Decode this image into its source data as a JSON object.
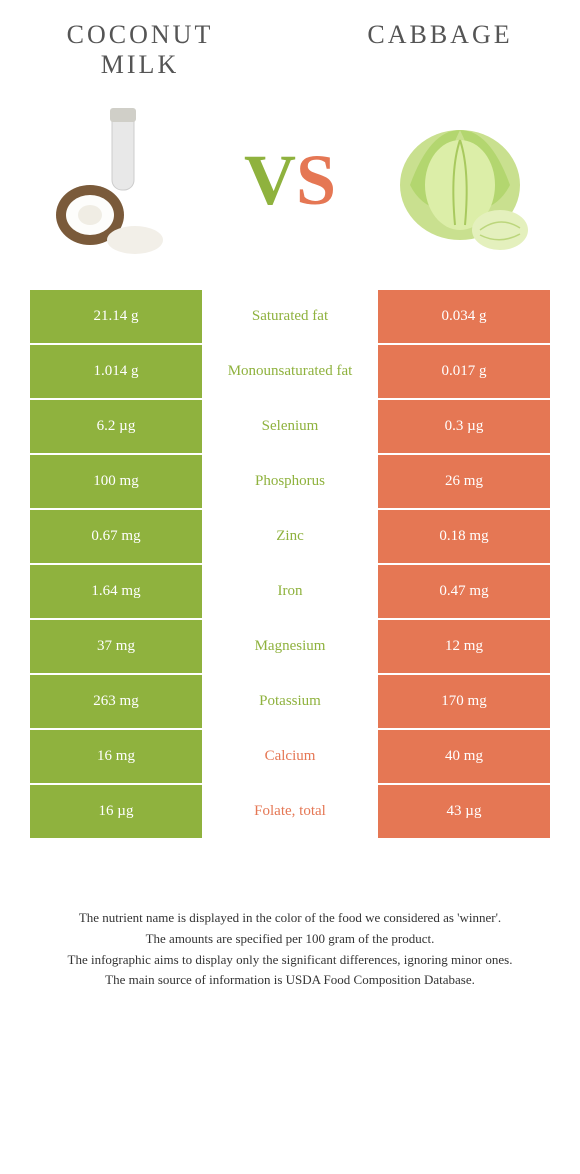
{
  "left_food": {
    "title": "COCONUT MILK"
  },
  "right_food": {
    "title": "CABBAGE"
  },
  "vs": {
    "v": "V",
    "s": "S"
  },
  "colors": {
    "left": "#8fb23e",
    "right": "#e57754"
  },
  "rows": [
    {
      "left": "21.14 g",
      "label": "Saturated fat",
      "right": "0.034 g",
      "winner": "left"
    },
    {
      "left": "1.014 g",
      "label": "Monounsaturated fat",
      "right": "0.017 g",
      "winner": "left"
    },
    {
      "left": "6.2 µg",
      "label": "Selenium",
      "right": "0.3 µg",
      "winner": "left"
    },
    {
      "left": "100 mg",
      "label": "Phosphorus",
      "right": "26 mg",
      "winner": "left"
    },
    {
      "left": "0.67 mg",
      "label": "Zinc",
      "right": "0.18 mg",
      "winner": "left"
    },
    {
      "left": "1.64 mg",
      "label": "Iron",
      "right": "0.47 mg",
      "winner": "left"
    },
    {
      "left": "37 mg",
      "label": "Magnesium",
      "right": "12 mg",
      "winner": "left"
    },
    {
      "left": "263 mg",
      "label": "Potassium",
      "right": "170 mg",
      "winner": "left"
    },
    {
      "left": "16 mg",
      "label": "Calcium",
      "right": "40 mg",
      "winner": "right"
    },
    {
      "left": "16 µg",
      "label": "Folate, total",
      "right": "43 µg",
      "winner": "right"
    }
  ],
  "footer": {
    "l1": "The nutrient name is displayed in the color of the food we considered as 'winner'.",
    "l2": "The amounts are specified per 100 gram of the product.",
    "l3": "The infographic aims to display only the significant differences, ignoring minor ones.",
    "l4": "The main source of information is USDA Food Composition Database."
  }
}
